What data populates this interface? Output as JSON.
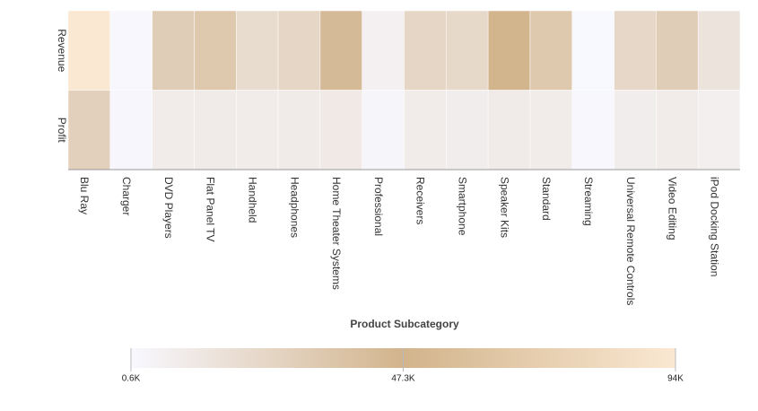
{
  "chart_data": {
    "type": "heatmap",
    "x_label": "Product Subcategory",
    "categories": [
      "Blu Ray",
      "Charger",
      "DVD Players",
      "Flat Panel TV",
      "Handheld",
      "Headphones",
      "Home Theater Systems",
      "Professional",
      "Receivers",
      "Smartphone",
      "Speaker Kits",
      "Standard",
      "Streaming",
      "Universal Remote Controls",
      "Video Editing",
      "iPod Docking Station"
    ],
    "series": [
      {
        "name": "Revenue",
        "values": [
          94000,
          1000,
          30000,
          33000,
          20000,
          24000,
          43000,
          6000,
          24000,
          22000,
          47000,
          33000,
          600,
          23000,
          30000,
          15000
        ]
      },
      {
        "name": "Profit",
        "values": [
          28000,
          2000,
          9000,
          10000,
          9000,
          10000,
          11000,
          3000,
          9000,
          8000,
          10000,
          9000,
          1000,
          8000,
          9000,
          7000
        ]
      }
    ],
    "colorscale": {
      "lim": [
        600,
        94000
      ],
      "ticks": [
        {
          "value": 600,
          "label": "0.6K"
        },
        {
          "value": 47300,
          "label": "47.3K"
        },
        {
          "value": 94000,
          "label": "94K"
        }
      ],
      "colors": [
        "#f8f8ff",
        "#d2b48c",
        "#fae8d2"
      ]
    }
  }
}
